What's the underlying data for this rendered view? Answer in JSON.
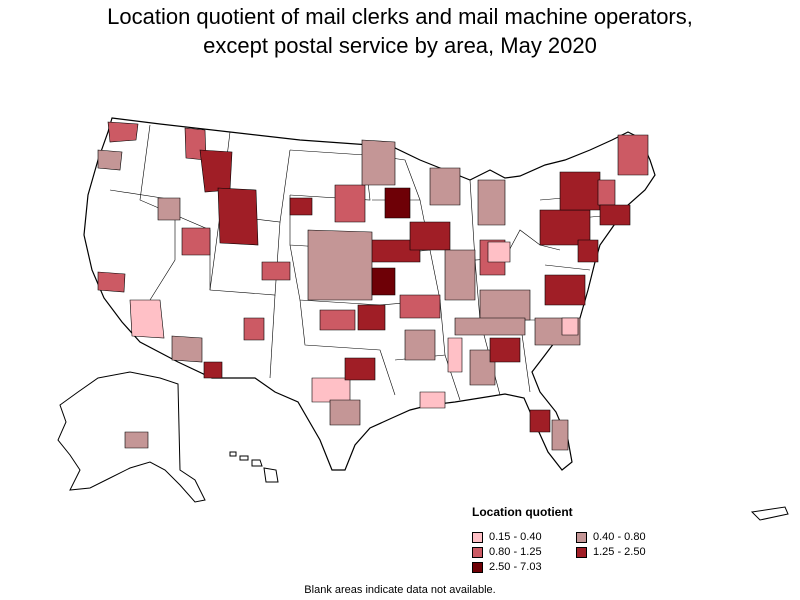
{
  "title": {
    "line1": "Location quotient of mail clerks and mail machine operators,",
    "line2": "except postal service by area, May 2020"
  },
  "legend": {
    "title": "Location quotient",
    "items": [
      {
        "label": "0.15 - 0.40",
        "color": "#ffc0c6"
      },
      {
        "label": "0.40 - 0.80",
        "color": "#c49696"
      },
      {
        "label": "0.80 - 1.25",
        "color": "#cc5a64"
      },
      {
        "label": "1.25 - 2.50",
        "color": "#a01e26"
      },
      {
        "label": "2.50 - 7.03",
        "color": "#6e0006"
      }
    ]
  },
  "note": "Blank areas indicate data not available.",
  "colors": {
    "no_data": "#ffffff",
    "border": "#000000"
  }
}
